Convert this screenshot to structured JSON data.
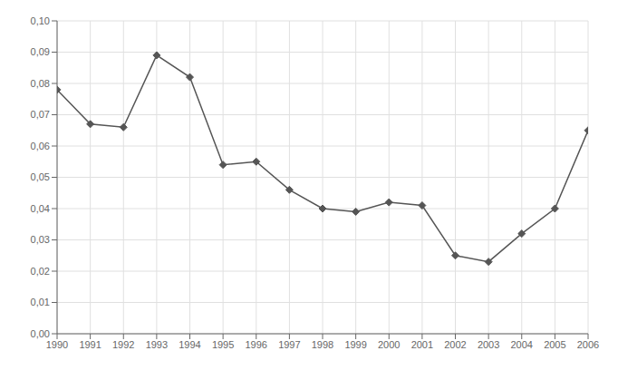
{
  "chart_data": {
    "type": "line",
    "x": [
      1990,
      1991,
      1992,
      1993,
      1994,
      1995,
      1996,
      1997,
      1998,
      1999,
      2000,
      2001,
      2002,
      2003,
      2004,
      2005,
      2006
    ],
    "values": [
      0.078,
      0.067,
      0.066,
      0.089,
      0.082,
      0.054,
      0.055,
      0.046,
      0.04,
      0.039,
      0.042,
      0.041,
      0.025,
      0.023,
      0.032,
      0.04,
      0.065
    ],
    "color": "#555555",
    "marker": "diamond",
    "xlim": [
      1990,
      2006
    ],
    "xticks": [
      1990,
      1991,
      1992,
      1993,
      1994,
      1995,
      1996,
      1997,
      1998,
      1999,
      2000,
      2001,
      2002,
      2003,
      2004,
      2005,
      2006
    ],
    "ylim": [
      0.0,
      0.1
    ],
    "yticks": [
      {
        "value": 0.0,
        "label": "0,00"
      },
      {
        "value": 0.01,
        "label": "0,01"
      },
      {
        "value": 0.02,
        "label": "0,02"
      },
      {
        "value": 0.03,
        "label": "0,03"
      },
      {
        "value": 0.04,
        "label": "0,04"
      },
      {
        "value": 0.05,
        "label": "0,05"
      },
      {
        "value": 0.06,
        "label": "0,06"
      },
      {
        "value": 0.07,
        "label": "0,07"
      },
      {
        "value": 0.08,
        "label": "0,08"
      },
      {
        "value": 0.09,
        "label": "0,09"
      },
      {
        "value": 0.1,
        "label": "0,10"
      }
    ],
    "grid": true
  }
}
